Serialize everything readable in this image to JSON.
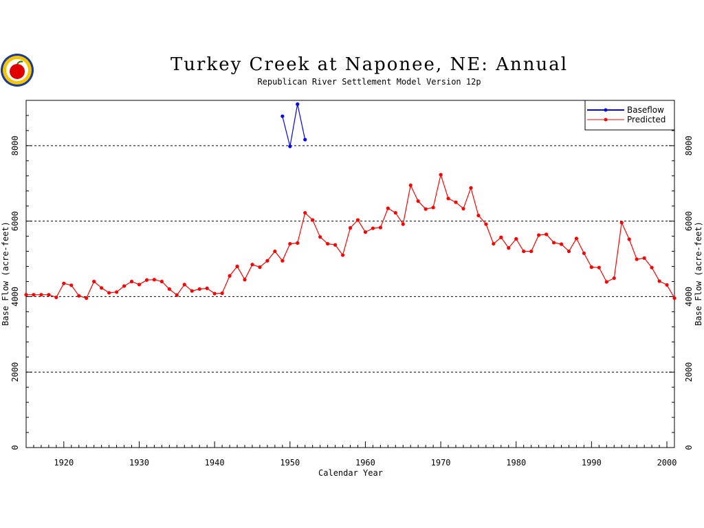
{
  "chart_data": {
    "type": "line",
    "title": "Turkey Creek at Naponee, NE: Annual",
    "subtitle": "Republican River Settlement Model Version 12p",
    "xlabel": "Calendar Year",
    "ylabel": "Base Flow (acre-feet)",
    "xlim": [
      1915,
      2001
    ],
    "ylim": [
      0,
      9200
    ],
    "x_ticks": [
      1920,
      1930,
      1940,
      1950,
      1960,
      1970,
      1980,
      1990,
      2000
    ],
    "y_ticks": [
      0,
      2000,
      4000,
      6000,
      8000
    ],
    "grid": "horizontal dashed at major y ticks",
    "legend_position": "top-right",
    "series": [
      {
        "name": "Baseflow",
        "color": "#0000ff",
        "x": [
          1949,
          1950,
          1951,
          1952
        ],
        "values": [
          8780,
          7980,
          9100,
          8160
        ]
      },
      {
        "name": "Predicted",
        "color": "#ff0000",
        "x": [
          1915,
          1916,
          1917,
          1918,
          1919,
          1920,
          1921,
          1922,
          1923,
          1924,
          1925,
          1926,
          1927,
          1928,
          1929,
          1930,
          1931,
          1932,
          1933,
          1934,
          1935,
          1936,
          1937,
          1938,
          1939,
          1940,
          1941,
          1942,
          1943,
          1944,
          1945,
          1946,
          1947,
          1948,
          1949,
          1950,
          1951,
          1952,
          1953,
          1954,
          1955,
          1956,
          1957,
          1958,
          1959,
          1960,
          1961,
          1962,
          1963,
          1964,
          1965,
          1966,
          1967,
          1968,
          1969,
          1970,
          1971,
          1972,
          1973,
          1974,
          1975,
          1976,
          1977,
          1978,
          1979,
          1980,
          1981,
          1982,
          1983,
          1984,
          1985,
          1986,
          1987,
          1988,
          1989,
          1990,
          1991,
          1992,
          1993,
          1994,
          1995,
          1996,
          1997,
          1998,
          1999,
          2000,
          2001
        ],
        "values": [
          4050,
          4050,
          4050,
          4050,
          3980,
          4350,
          4300,
          4020,
          3960,
          4400,
          4230,
          4100,
          4120,
          4280,
          4400,
          4320,
          4440,
          4450,
          4400,
          4200,
          4040,
          4320,
          4150,
          4200,
          4220,
          4080,
          4090,
          4550,
          4800,
          4450,
          4850,
          4780,
          4950,
          5200,
          4950,
          5400,
          5420,
          6220,
          6030,
          5580,
          5400,
          5370,
          5100,
          5820,
          6030,
          5710,
          5810,
          5830,
          6340,
          6220,
          5920,
          6950,
          6530,
          6320,
          6360,
          7230,
          6600,
          6500,
          6330,
          6880,
          6150,
          5920,
          5400,
          5570,
          5290,
          5530,
          5200,
          5200,
          5630,
          5650,
          5430,
          5390,
          5200,
          5540,
          5150,
          4780,
          4770,
          4390,
          4490,
          5960,
          5520,
          4990,
          5020,
          4770,
          4410,
          4310,
          3960
        ]
      }
    ]
  }
}
